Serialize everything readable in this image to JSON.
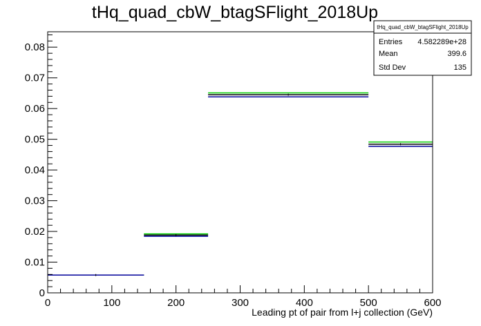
{
  "chart_data": {
    "type": "step",
    "title": "tHq_quad_cbW_btagSFlight_2018Up",
    "xlabel": "Leading pt of pair from l+j collection (GeV)",
    "ylabel": "",
    "xlim": [
      0,
      600
    ],
    "ylim": [
      0,
      0.085
    ],
    "x_ticks": [
      0,
      100,
      200,
      300,
      400,
      500,
      600
    ],
    "y_ticks": [
      0,
      0.01,
      0.02,
      0.03,
      0.04,
      0.05,
      0.06,
      0.07,
      0.08
    ],
    "x_tick_labels": [
      "0",
      "100",
      "200",
      "300",
      "400",
      "500",
      "600"
    ],
    "y_tick_labels": [
      "0",
      "0.01",
      "0.02",
      "0.03",
      "0.04",
      "0.05",
      "0.06",
      "0.07",
      "0.08"
    ],
    "bins": [
      {
        "x0": 0,
        "x1": 150
      },
      {
        "x0": 150,
        "x1": 250
      },
      {
        "x0": 250,
        "x1": 500
      },
      {
        "x0": 500,
        "x1": 600
      }
    ],
    "series": [
      {
        "color": "#00cc00",
        "values": [
          0.0058,
          0.0192,
          0.0651,
          0.0491
        ]
      },
      {
        "color": "#000000",
        "values": [
          0.0058,
          0.0188,
          0.0645,
          0.0484
        ]
      },
      {
        "color": "#000099",
        "values": [
          0.0058,
          0.0184,
          0.0638,
          0.0477
        ]
      }
    ],
    "grid": false,
    "stats_box": {
      "name": "tHq_quad_cbW_btagSFlight_2018Up",
      "rows": [
        {
          "label": "Entries",
          "value": "4.582289e+28"
        },
        {
          "label": "Mean",
          "value": "399.6"
        },
        {
          "label": "Std Dev",
          "value": "135"
        }
      ]
    }
  }
}
